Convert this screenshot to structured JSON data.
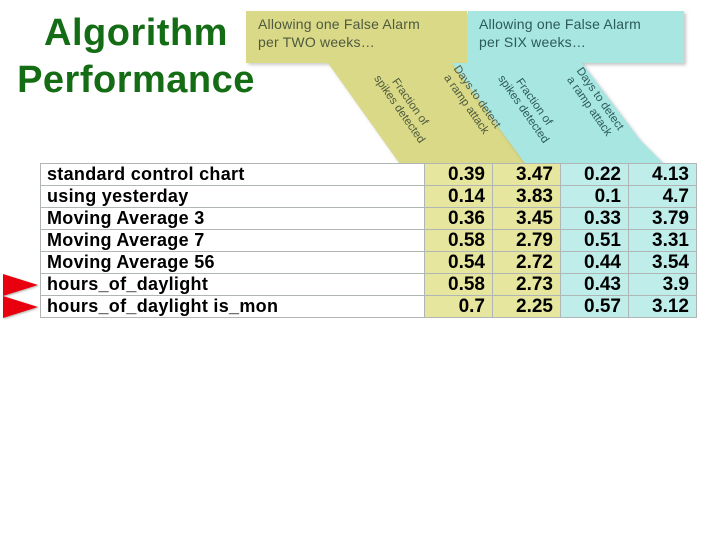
{
  "title": {
    "line1": "Algorithm",
    "line2": "Performance"
  },
  "banners": {
    "two": {
      "heading_line1": "Allowing one False Alarm",
      "heading_line2": "per TWO weeks…"
    },
    "six": {
      "heading_line1": "Allowing one False Alarm",
      "heading_line2": "per SIX weeks…"
    }
  },
  "column_labels": {
    "fraction_line1": "Fraction of",
    "fraction_line2": "spikes detected",
    "days_line1": "Days to detect",
    "days_line2": "a ramp attack"
  },
  "chart_data": {
    "type": "table",
    "title": "Algorithm Performance",
    "group_headers": [
      "Allowing one False Alarm per TWO weeks…",
      "Allowing one False Alarm per SIX weeks…"
    ],
    "column_headers": [
      "Fraction of spikes detected",
      "Days to detect a ramp attack",
      "Fraction of spikes detected",
      "Days to detect a ramp attack"
    ],
    "rows": [
      {
        "label": "standard control chart",
        "values": [
          "0.39",
          "3.47",
          "0.22",
          "4.13"
        ],
        "marked": false
      },
      {
        "label": "using yesterday",
        "values": [
          "0.14",
          "3.83",
          "0.1",
          "4.7"
        ],
        "marked": false
      },
      {
        "label": "Moving Average 3",
        "values": [
          "0.36",
          "3.45",
          "0.33",
          "3.79"
        ],
        "marked": false
      },
      {
        "label": "Moving Average 7",
        "values": [
          "0.58",
          "2.79",
          "0.51",
          "3.31"
        ],
        "marked": false
      },
      {
        "label": "Moving Average 56",
        "values": [
          "0.54",
          "2.72",
          "0.44",
          "3.54"
        ],
        "marked": false
      },
      {
        "label": "hours_of_daylight",
        "values": [
          "0.58",
          "2.73",
          "0.43",
          "3.9"
        ],
        "marked": true
      },
      {
        "label": "hours_of_daylight is_mon",
        "values": [
          "0.7",
          "2.25",
          "0.57",
          "3.12"
        ],
        "marked": true
      }
    ]
  },
  "colors": {
    "title_green": "#146c14",
    "two_weeks_fill": "#d9d987",
    "two_weeks_cell": "#e6e69e",
    "two_weeks_text": "#4e5a3e",
    "six_weeks_fill": "#a8e6e2",
    "six_weeks_cell": "#bfeeea",
    "six_weeks_text": "#2b5a58",
    "arrow_red": "#e8000f",
    "grid_line": "#b0b6b6"
  }
}
